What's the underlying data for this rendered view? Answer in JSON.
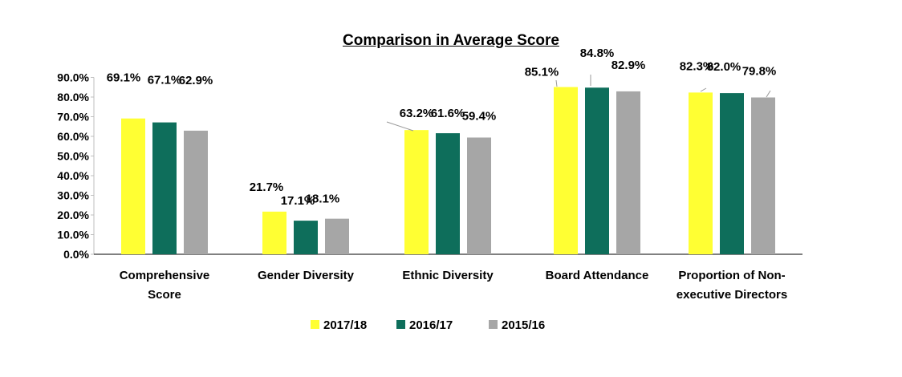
{
  "chart_data": {
    "type": "bar",
    "title": "Comparison in Average Score",
    "xlabel": "",
    "ylabel": "",
    "ylim": [
      0,
      90
    ],
    "yticks": [
      "0.0%",
      "10.0%",
      "20.0%",
      "30.0%",
      "40.0%",
      "50.0%",
      "60.0%",
      "70.0%",
      "80.0%",
      "90.0%"
    ],
    "categories": [
      [
        "Comprehensive",
        "Score"
      ],
      [
        "Gender Diversity"
      ],
      [
        "Ethnic Diversity"
      ],
      [
        "Board Attendance"
      ],
      [
        "Proportion of Non-",
        "executive Directors"
      ]
    ],
    "series": [
      {
        "name": "2017/18",
        "color": "#FFFF33",
        "values": [
          69.1,
          21.7,
          63.2,
          85.1,
          82.3
        ],
        "labels": [
          "69.1%",
          "21.7%",
          "63.2%",
          "85.1%",
          "82.3%"
        ]
      },
      {
        "name": "2016/17",
        "color": "#0E6E5B",
        "values": [
          67.1,
          17.1,
          61.6,
          84.8,
          82.0
        ],
        "labels": [
          "67.1%",
          "17.1%",
          "61.6%",
          "84.8%",
          "82.0%"
        ]
      },
      {
        "name": "2015/16",
        "color": "#A6A6A6",
        "values": [
          62.9,
          18.1,
          59.4,
          82.9,
          79.8
        ],
        "labels": [
          "62.9%",
          "18.1%",
          "59.4%",
          "82.9%",
          "79.8%"
        ]
      }
    ],
    "grid": false,
    "legend_position": "bottom"
  }
}
